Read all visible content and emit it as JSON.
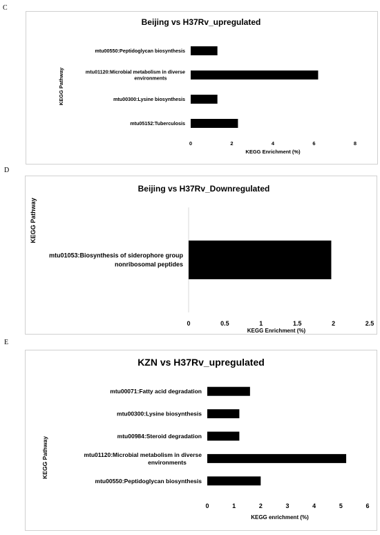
{
  "panels": [
    {
      "letter": "C"
    },
    {
      "letter": "D"
    },
    {
      "letter": "E"
    }
  ],
  "chart_data": [
    {
      "type": "bar",
      "orientation": "horizontal",
      "title": "Beijing vs H37Rv_upregulated",
      "xlabel": "KEGG Enrichment (%)",
      "ylabel": "KEGG Pathway",
      "xlim": [
        0,
        8
      ],
      "xticks": [
        "0",
        "2",
        "4",
        "6",
        "8"
      ],
      "categories": [
        [
          "mtu00550:Peptidoglycan biosynthesis"
        ],
        [
          "mtu01120:Microbial metabolism in diverse",
          "environments"
        ],
        [
          "mtu00300:Lysine biosynthesis"
        ],
        [
          "mtu05152:Tuberculosis"
        ]
      ],
      "values": [
        1.3,
        6.2,
        1.3,
        2.3
      ],
      "grid": false,
      "color": "#000000"
    },
    {
      "type": "bar",
      "orientation": "horizontal",
      "title": "Beijing vs H37Rv_Downregulated",
      "xlabel": "KEGG Enrichment (%)",
      "ylabel": "KEGG Pathway",
      "xlim": [
        0,
        2.5
      ],
      "xticks": [
        "0",
        "0.5",
        "1",
        "1.5",
        "2",
        "2.5"
      ],
      "categories": [
        [
          "mtu01053:Biosynthesis of siderophore group",
          "nonribosomal peptides"
        ]
      ],
      "values": [
        1.97
      ],
      "grid": false,
      "color": "#000000"
    },
    {
      "type": "bar",
      "orientation": "horizontal",
      "title": "KZN vs H37Rv_upregulated",
      "xlabel": "KEGG enrichment (%)",
      "ylabel": "KEGG Pathway",
      "xlim": [
        0,
        6
      ],
      "xticks": [
        "0",
        "1",
        "2",
        "3",
        "4",
        "5",
        "6"
      ],
      "categories": [
        [
          "mtu00071:Fatty acid degradation"
        ],
        [
          "mtu00300:Lysine biosynthesis"
        ],
        [
          "mtu00984:Steroid degradation"
        ],
        [
          "mtu01120:Microbial metabolism in diverse",
          "environments"
        ],
        [
          "mtu00550:Peptidoglycan biosynthesis"
        ]
      ],
      "values": [
        1.6,
        1.2,
        1.2,
        5.2,
        2.0
      ],
      "grid": false,
      "color": "#000000"
    }
  ]
}
